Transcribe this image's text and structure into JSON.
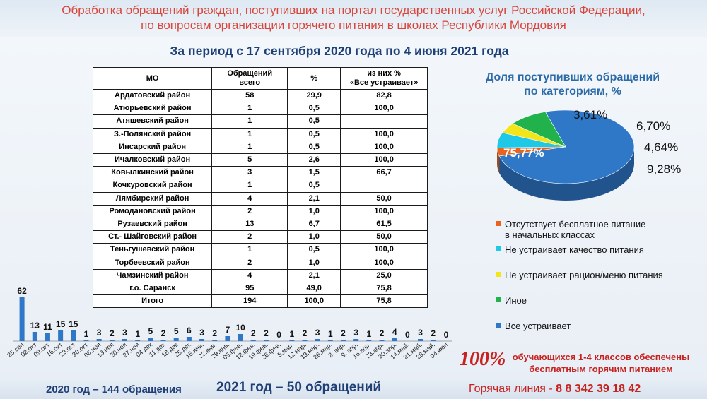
{
  "header": {
    "line1": "Обработка обращений граждан, поступивших на портал государственных услуг Российской Федерации,",
    "line2": "по вопросам организации горячего питания в школах Республики Мордовия"
  },
  "period_title": "За период с 17 сентября 2020 года по 4 июня 2021 года",
  "table": {
    "headers": {
      "mo": "МО",
      "total_line1": "Обращений",
      "total_line2": "всего",
      "pct": "%",
      "sat_line1": "из них %",
      "sat_line2": "«Все устраивает»"
    },
    "rows": [
      {
        "mo": "Ардатовский район",
        "total": "58",
        "pct": "29,9",
        "sat": "82,8"
      },
      {
        "mo": "Атюрьевский район",
        "total": "1",
        "pct": "0,5",
        "sat": "100,0"
      },
      {
        "mo": "Атяшевский район",
        "total": "1",
        "pct": "0,5",
        "sat": ""
      },
      {
        "mo": "З.-Полянский район",
        "total": "1",
        "pct": "0,5",
        "sat": "100,0"
      },
      {
        "mo": "Инсарский район",
        "total": "1",
        "pct": "0,5",
        "sat": "100,0"
      },
      {
        "mo": "Ичалковский район",
        "total": "5",
        "pct": "2,6",
        "sat": "100,0"
      },
      {
        "mo": "Ковылкинский район",
        "total": "3",
        "pct": "1,5",
        "sat": "66,7"
      },
      {
        "mo": "Кочкуровский район",
        "total": "1",
        "pct": "0,5",
        "sat": ""
      },
      {
        "mo": "Лямбирский район",
        "total": "4",
        "pct": "2,1",
        "sat": "50,0"
      },
      {
        "mo": "Ромодановский район",
        "total": "2",
        "pct": "1,0",
        "sat": "100,0"
      },
      {
        "mo": "Рузаевский район",
        "total": "13",
        "pct": "6,7",
        "sat": "61,5"
      },
      {
        "mo": "Ст.- Шайговский район",
        "total": "2",
        "pct": "1,0",
        "sat": "50,0"
      },
      {
        "mo": "Теньгушевский район",
        "total": "1",
        "pct": "0,5",
        "sat": "100,0"
      },
      {
        "mo": "Торбеевский район",
        "total": "2",
        "pct": "1,0",
        "sat": "100,0"
      },
      {
        "mo": "Чамзинский район",
        "total": "4",
        "pct": "2,1",
        "sat": "25,0"
      },
      {
        "mo": "г.о. Саранск",
        "total": "95",
        "pct": "49,0",
        "sat": "75,8"
      },
      {
        "mo": "Итого",
        "total": "194",
        "pct": "100,0",
        "sat": "75,8"
      }
    ]
  },
  "pie": {
    "title_line1": "Доля поступивших обращений",
    "title_line2": "по категориям, %",
    "slices": [
      {
        "label": "75,77%",
        "value": 75.77,
        "color": "#2f78c8",
        "legend": "Все устраивает"
      },
      {
        "label": "3,61%",
        "value": 3.61,
        "color": "#e8641e",
        "legend": "Отсутствует бесплатное питание в начальных классах"
      },
      {
        "label": "6,70%",
        "value": 6.7,
        "color": "#1ec8e6",
        "legend": "Не устраивает качество питания"
      },
      {
        "label": "4,64%",
        "value": 4.64,
        "color": "#f2e61a",
        "legend": "Не устраивает рацион/меню питания"
      },
      {
        "label": "9,28%",
        "value": 9.28,
        "color": "#21b24b",
        "legend": "Иное"
      }
    ]
  },
  "legend": [
    {
      "text_line1": "Отсутствует бесплатное питание",
      "text_line2": "в начальных классах",
      "color": "#e8641e"
    },
    {
      "text_line1": "Не устраивает качество питания",
      "text_line2": "",
      "color": "#1ec8e6"
    },
    {
      "text_line1": "Не устраивает рацион/меню питания",
      "text_line2": "",
      "color": "#f2e61a"
    },
    {
      "text_line1": "Иное",
      "text_line2": "",
      "color": "#21b24b"
    },
    {
      "text_line1": "Все устраивает",
      "text_line2": "",
      "color": "#2f78c8"
    }
  ],
  "chart_data": {
    "type": "bar",
    "categories": [
      "25.сен",
      "02.окт",
      "09.окт",
      "16.окт",
      "23.окт",
      "30.окт",
      "06.ноя",
      "13.ноя",
      "20.ноя",
      "27.ноя",
      "04.дек",
      "11.дек",
      "18.дек",
      "25.дек",
      "15.янв.",
      "22.янв.",
      "29.янв.",
      "05.фев.",
      "12.фев.",
      "19.фев.",
      "26.фев.",
      "5.мар.",
      "12.мар.",
      "19.мар.",
      "26.мар.",
      "2. апр.",
      "9. апр.",
      "16.апр.",
      "23.апр.",
      "30.апр.",
      "14.май.",
      "21.май.",
      "28.май.",
      "04.июн"
    ],
    "values": [
      62,
      13,
      11,
      15,
      15,
      1,
      3,
      2,
      3,
      1,
      5,
      2,
      5,
      6,
      3,
      2,
      7,
      10,
      2,
      2,
      0,
      1,
      2,
      3,
      1,
      2,
      3,
      1,
      2,
      4,
      0,
      3,
      2,
      0
    ],
    "color": "#2f78c8"
  },
  "footer": {
    "percent": "100%",
    "note_line1": "обучающихся 1-4 классов обеспечены",
    "note_line2": "бесплатным горячим питанием",
    "year_2020": "2020 год – 144 обращения",
    "year_2021": "2021 год – 50 обращений",
    "hotline_label": "Горячая линия - ",
    "hotline_number": "8 8 342 39 18 42"
  }
}
